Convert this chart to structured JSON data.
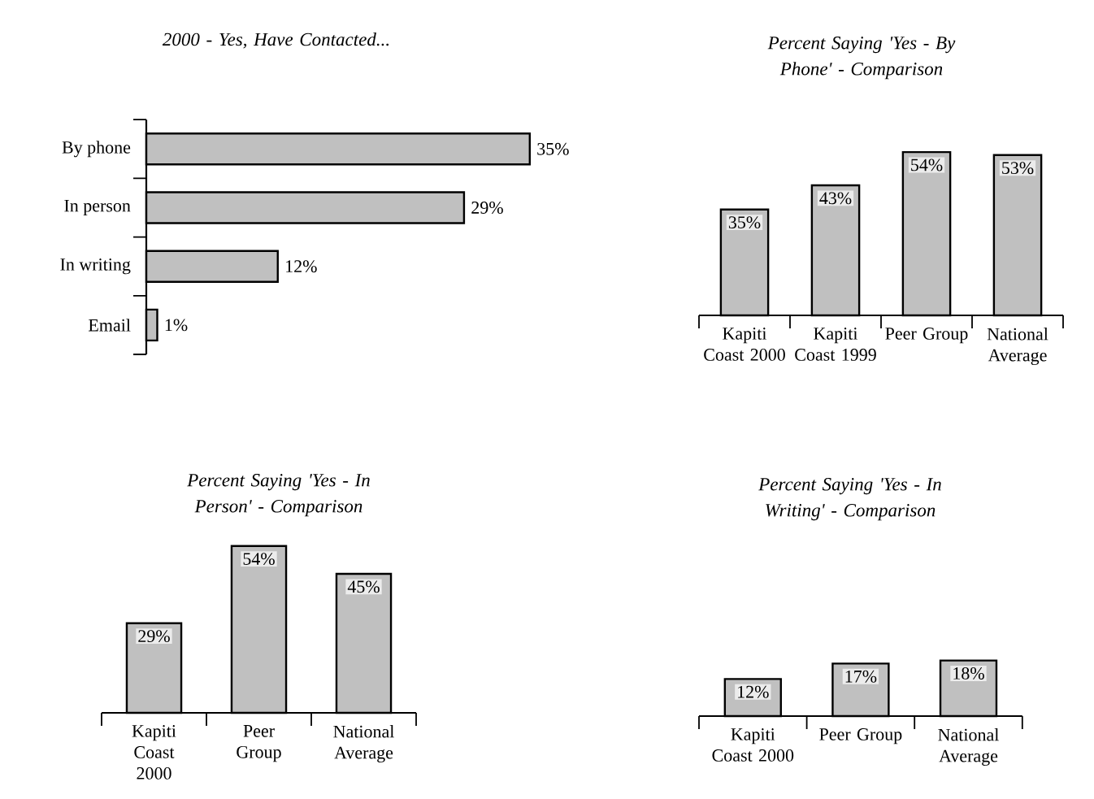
{
  "chart_data": [
    {
      "type": "bar",
      "orientation": "horizontal",
      "title": "2000 - Yes, Have Contacted...",
      "categories": [
        "By phone",
        "In person",
        "In writing",
        "Email"
      ],
      "values": [
        35,
        29,
        12,
        1
      ],
      "value_labels": [
        "35%",
        "29%",
        "12%",
        "1%"
      ],
      "color": "#c0c0c0"
    },
    {
      "type": "bar",
      "title": "Percent Saying 'Yes - By Phone' - Comparison",
      "categories": [
        "Kapiti Coast 2000",
        "Kapiti Coast 1999",
        "Peer Group",
        "National Average"
      ],
      "values": [
        35,
        43,
        54,
        53
      ],
      "value_labels": [
        "35%",
        "43%",
        "54%",
        "53%"
      ],
      "color": "#c0c0c0"
    },
    {
      "type": "bar",
      "title": "Percent Saying 'Yes - In Person' - Comparison",
      "categories": [
        "Kapiti Coast 2000",
        "Peer Group",
        "National Average"
      ],
      "values": [
        29,
        54,
        45
      ],
      "value_labels": [
        "29%",
        "54%",
        "45%"
      ],
      "color": "#c0c0c0"
    },
    {
      "type": "bar",
      "title": "Percent Saying 'Yes - In Writing' - Comparison",
      "categories": [
        "Kapiti Coast 2000",
        "Peer Group",
        "National Average"
      ],
      "values": [
        12,
        17,
        18
      ],
      "value_labels": [
        "12%",
        "17%",
        "18%"
      ],
      "color": "#c0c0c0"
    }
  ]
}
